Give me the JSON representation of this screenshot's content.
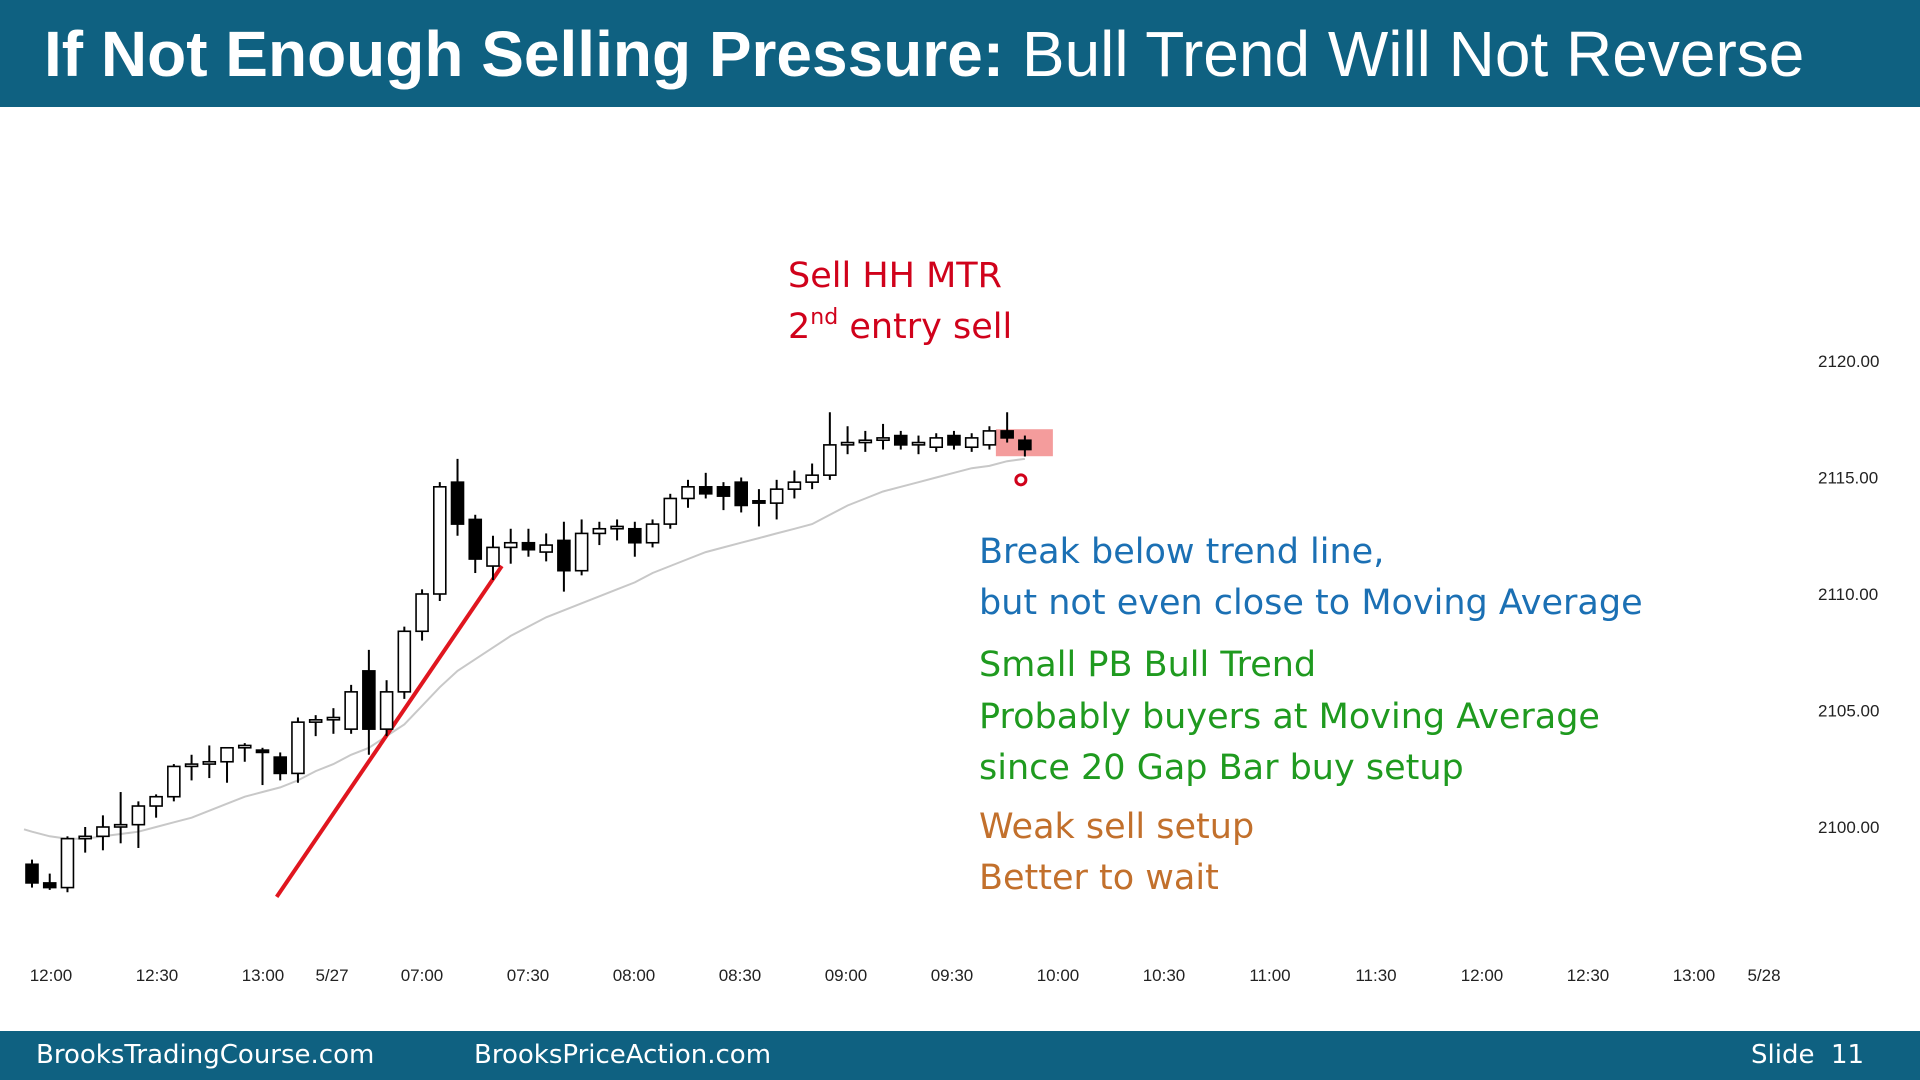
{
  "header": {
    "title_bold": "If Not Enough Selling Pressure:",
    "title_rest": "Bull Trend Will Not Reverse",
    "background_color": "#0f6181"
  },
  "footer": {
    "left_site": "BrooksTradingCourse.com",
    "center_site": "BrooksPriceAction.com",
    "slide_label": "Slide",
    "slide_number": "11"
  },
  "annotations": {
    "sell_line1": "Sell HH MTR",
    "sell_line2_num": "2",
    "sell_line2_sup": "nd",
    "sell_line2_rest": " entry sell",
    "blue_line1": "Break below trend line,",
    "blue_line2": "but not even close to Moving Average",
    "green_line1": "Small PB Bull Trend",
    "green_line2": "Probably buyers at Moving Average",
    "green_line3": "since 20 Gap Bar buy setup",
    "orange_line1": "Weak sell setup",
    "orange_line2": "Better to wait"
  },
  "colors": {
    "annotation_red": "#d0021b",
    "annotation_blue": "#1b70b4",
    "annotation_green": "#1f9a1f",
    "annotation_orange": "#c2702c",
    "trend_line": "#e0161f",
    "moving_average": "#c8c8c8",
    "signal_box": "#f28b8b"
  },
  "chart_data": {
    "type": "candlestick",
    "title": "",
    "ylim": [
      2096,
      2125
    ],
    "y_ticks": [
      "2120.00",
      "2115.00",
      "2110.00",
      "2105.00",
      "2100.00"
    ],
    "x_tick_labels": [
      "12:00",
      "12:30",
      "13:00",
      "5/27",
      "07:00",
      "07:30",
      "08:00",
      "08:30",
      "09:00",
      "09:30",
      "10:00",
      "10:30",
      "11:00",
      "11:30",
      "12:00",
      "12:30",
      "13:00",
      "5/28"
    ],
    "candles": [
      {
        "o": 2098.4,
        "h": 2098.6,
        "l": 2097.4,
        "c": 2097.6
      },
      {
        "o": 2097.6,
        "h": 2098.0,
        "l": 2097.3,
        "c": 2097.4
      },
      {
        "o": 2097.4,
        "h": 2099.6,
        "l": 2097.2,
        "c": 2099.5
      },
      {
        "o": 2099.5,
        "h": 2100.0,
        "l": 2098.9,
        "c": 2099.6
      },
      {
        "o": 2099.6,
        "h": 2100.5,
        "l": 2099.0,
        "c": 2100.0
      },
      {
        "o": 2100.0,
        "h": 2101.5,
        "l": 2099.3,
        "c": 2100.1
      },
      {
        "o": 2100.1,
        "h": 2101.1,
        "l": 2099.1,
        "c": 2100.9
      },
      {
        "o": 2100.9,
        "h": 2101.4,
        "l": 2100.4,
        "c": 2101.3
      },
      {
        "o": 2101.3,
        "h": 2102.7,
        "l": 2101.1,
        "c": 2102.6
      },
      {
        "o": 2102.6,
        "h": 2103.1,
        "l": 2102.0,
        "c": 2102.7
      },
      {
        "o": 2102.7,
        "h": 2103.5,
        "l": 2102.1,
        "c": 2102.8
      },
      {
        "o": 2102.8,
        "h": 2103.4,
        "l": 2101.9,
        "c": 2103.4
      },
      {
        "o": 2103.4,
        "h": 2103.6,
        "l": 2102.8,
        "c": 2103.5
      },
      {
        "o": 2103.3,
        "h": 2103.4,
        "l": 2101.8,
        "c": 2103.2
      },
      {
        "o": 2103.0,
        "h": 2103.2,
        "l": 2102.0,
        "c": 2102.3
      },
      {
        "o": 2102.3,
        "h": 2104.7,
        "l": 2101.9,
        "c": 2104.5
      },
      {
        "o": 2104.5,
        "h": 2104.8,
        "l": 2103.9,
        "c": 2104.6
      },
      {
        "o": 2104.6,
        "h": 2105.1,
        "l": 2104.0,
        "c": 2104.7
      },
      {
        "o": 2104.2,
        "h": 2106.1,
        "l": 2104.0,
        "c": 2105.8
      },
      {
        "o": 2106.7,
        "h": 2107.6,
        "l": 2103.1,
        "c": 2104.2
      },
      {
        "o": 2104.2,
        "h": 2106.3,
        "l": 2103.9,
        "c": 2105.8
      },
      {
        "o": 2105.8,
        "h": 2108.6,
        "l": 2105.5,
        "c": 2108.4
      },
      {
        "o": 2108.4,
        "h": 2110.2,
        "l": 2108.0,
        "c": 2110.0
      },
      {
        "o": 2110.0,
        "h": 2114.8,
        "l": 2109.7,
        "c": 2114.6
      },
      {
        "o": 2114.8,
        "h": 2115.8,
        "l": 2112.5,
        "c": 2113.0
      },
      {
        "o": 2113.2,
        "h": 2113.4,
        "l": 2110.9,
        "c": 2111.5
      },
      {
        "o": 2111.2,
        "h": 2112.5,
        "l": 2110.6,
        "c": 2112.0
      },
      {
        "o": 2112.0,
        "h": 2112.8,
        "l": 2111.3,
        "c": 2112.2
      },
      {
        "o": 2112.2,
        "h": 2112.8,
        "l": 2111.6,
        "c": 2111.9
      },
      {
        "o": 2111.8,
        "h": 2112.6,
        "l": 2111.4,
        "c": 2112.1
      },
      {
        "o": 2112.3,
        "h": 2113.1,
        "l": 2110.1,
        "c": 2111.0
      },
      {
        "o": 2111.0,
        "h": 2113.2,
        "l": 2110.8,
        "c": 2112.6
      },
      {
        "o": 2112.6,
        "h": 2113.1,
        "l": 2112.1,
        "c": 2112.8
      },
      {
        "o": 2112.8,
        "h": 2113.2,
        "l": 2112.3,
        "c": 2112.9
      },
      {
        "o": 2112.8,
        "h": 2113.1,
        "l": 2111.6,
        "c": 2112.2
      },
      {
        "o": 2112.2,
        "h": 2113.2,
        "l": 2112.0,
        "c": 2113.0
      },
      {
        "o": 2113.0,
        "h": 2114.3,
        "l": 2112.8,
        "c": 2114.1
      },
      {
        "o": 2114.1,
        "h": 2114.9,
        "l": 2113.7,
        "c": 2114.6
      },
      {
        "o": 2114.6,
        "h": 2115.2,
        "l": 2114.1,
        "c": 2114.3
      },
      {
        "o": 2114.6,
        "h": 2114.8,
        "l": 2113.6,
        "c": 2114.2
      },
      {
        "o": 2114.8,
        "h": 2115.0,
        "l": 2113.5,
        "c": 2113.8
      },
      {
        "o": 2114.0,
        "h": 2114.5,
        "l": 2112.9,
        "c": 2113.9
      },
      {
        "o": 2113.9,
        "h": 2114.9,
        "l": 2113.2,
        "c": 2114.5
      },
      {
        "o": 2114.5,
        "h": 2115.3,
        "l": 2114.1,
        "c": 2114.8
      },
      {
        "o": 2114.8,
        "h": 2115.6,
        "l": 2114.5,
        "c": 2115.1
      },
      {
        "o": 2115.1,
        "h": 2117.8,
        "l": 2114.9,
        "c": 2116.4
      },
      {
        "o": 2116.4,
        "h": 2117.2,
        "l": 2116.0,
        "c": 2116.5
      },
      {
        "o": 2116.5,
        "h": 2117.0,
        "l": 2116.1,
        "c": 2116.6
      },
      {
        "o": 2116.6,
        "h": 2117.3,
        "l": 2116.2,
        "c": 2116.7
      },
      {
        "o": 2116.8,
        "h": 2117.0,
        "l": 2116.2,
        "c": 2116.4
      },
      {
        "o": 2116.4,
        "h": 2116.8,
        "l": 2116.0,
        "c": 2116.5
      },
      {
        "o": 2116.3,
        "h": 2116.9,
        "l": 2116.1,
        "c": 2116.7
      },
      {
        "o": 2116.8,
        "h": 2117.0,
        "l": 2116.2,
        "c": 2116.4
      },
      {
        "o": 2116.3,
        "h": 2116.9,
        "l": 2116.1,
        "c": 2116.7
      },
      {
        "o": 2116.4,
        "h": 2117.2,
        "l": 2116.2,
        "c": 2117.0
      },
      {
        "o": 2117.0,
        "h": 2117.8,
        "l": 2116.5,
        "c": 2116.7
      },
      {
        "o": 2116.6,
        "h": 2116.8,
        "l": 2115.9,
        "c": 2116.2
      }
    ],
    "moving_average": [
      2099.8,
      2099.6,
      2099.5,
      2099.5,
      2099.6,
      2099.7,
      2099.8,
      2100.0,
      2100.2,
      2100.4,
      2100.7,
      2101.0,
      2101.3,
      2101.5,
      2101.7,
      2102.0,
      2102.4,
      2102.7,
      2103.1,
      2103.4,
      2103.9,
      2104.4,
      2105.2,
      2106.0,
      2106.7,
      2107.2,
      2107.7,
      2108.2,
      2108.6,
      2109.0,
      2109.3,
      2109.6,
      2109.9,
      2110.2,
      2110.5,
      2110.9,
      2111.2,
      2111.5,
      2111.8,
      2112.0,
      2112.2,
      2112.4,
      2112.6,
      2112.8,
      2113.0,
      2113.4,
      2113.8,
      2114.1,
      2114.4,
      2114.6,
      2114.8,
      2115.0,
      2115.2,
      2115.4,
      2115.5,
      2115.7,
      2115.8
    ],
    "trend_line": {
      "from": {
        "bar": 13.8,
        "value": 2097.0
      },
      "to": {
        "bar": 26.5,
        "value": 2111.2
      }
    },
    "signal_bar_index": 56
  }
}
